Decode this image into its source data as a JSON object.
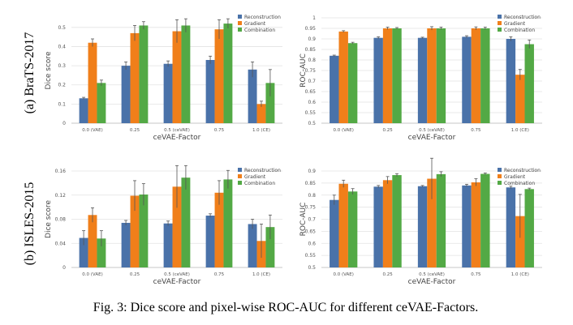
{
  "colors": {
    "Reconstruction": "#4a72a9",
    "Gradient": "#f07f1a",
    "Combination": "#53a945",
    "error": "#555555",
    "grid": "#e2e2e2"
  },
  "row_labels": [
    "(a) BraTS-2017",
    "(b) ISLES-2015"
  ],
  "caption": "Fig. 3: Dice score and pixel-wise ROC-AUC for different ceVAE-Factors.",
  "chart_data": [
    {
      "type": "bar",
      "ylabel": "Dice score",
      "xlabel": "ceVAE-Factor",
      "categories": [
        "0.0 (VAE)",
        "0.25",
        "0.5 (ceVAE)",
        "0.75",
        "1.0 (CE)"
      ],
      "ylim": [
        0,
        0.55
      ],
      "yticks": [
        "0",
        "0.1",
        "0.2",
        "0.3",
        "0.4",
        "0.5"
      ],
      "grid": true,
      "legend": "top-right",
      "series": [
        {
          "name": "Reconstruction",
          "values": [
            0.13,
            0.3,
            0.31,
            0.33,
            0.28
          ],
          "err": [
            0.005,
            0.02,
            0.015,
            0.02,
            0.04
          ]
        },
        {
          "name": "Gradient",
          "values": [
            0.42,
            0.47,
            0.48,
            0.49,
            0.1
          ],
          "err": [
            0.02,
            0.04,
            0.06,
            0.05,
            0.015
          ]
        },
        {
          "name": "Combination",
          "values": [
            0.21,
            0.51,
            0.51,
            0.52,
            0.21
          ],
          "err": [
            0.015,
            0.02,
            0.035,
            0.025,
            0.07
          ]
        }
      ]
    },
    {
      "type": "bar",
      "ylabel": "ROC-AUC",
      "xlabel": "ceVAE-Factor",
      "categories": [
        "0.0 (VAE)",
        "0.25",
        "0.5 (ceVAE)",
        "0.75",
        "1.0 (CE)"
      ],
      "ylim": [
        0.5,
        1.0
      ],
      "yticks": [
        "0.5",
        "0.55",
        "0.6",
        "0.65",
        "0.7",
        "0.75",
        "0.8",
        "0.85",
        "0.9",
        "0.95",
        "1"
      ],
      "grid": true,
      "legend": "top-right",
      "series": [
        {
          "name": "Reconstruction",
          "values": [
            0.82,
            0.905,
            0.905,
            0.91,
            0.9
          ],
          "err": [
            0.003,
            0.005,
            0.003,
            0.005,
            0.01
          ]
        },
        {
          "name": "Gradient",
          "values": [
            0.935,
            0.95,
            0.95,
            0.95,
            0.73
          ],
          "err": [
            0.004,
            0.006,
            0.008,
            0.007,
            0.025
          ]
        },
        {
          "name": "Combination",
          "values": [
            0.88,
            0.95,
            0.95,
            0.95,
            0.875
          ],
          "err": [
            0.004,
            0.004,
            0.006,
            0.006,
            0.02
          ]
        }
      ]
    },
    {
      "type": "bar",
      "ylabel": "Dice score",
      "xlabel": "ceVAE-Factor",
      "categories": [
        "0.0 (VAE)",
        "0.25",
        "0.5 (ceVAE)",
        "0.75",
        "1.0 (CE)"
      ],
      "ylim": [
        0,
        0.16
      ],
      "yticks": [
        "0",
        "0.04",
        "0.08",
        "0.12",
        "0.16"
      ],
      "grid": true,
      "legend": "top-right",
      "series": [
        {
          "name": "Reconstruction",
          "values": [
            0.049,
            0.074,
            0.073,
            0.086,
            0.072
          ],
          "err": [
            0.012,
            0.004,
            0.004,
            0.003,
            0.008
          ]
        },
        {
          "name": "Gradient",
          "values": [
            0.087,
            0.119,
            0.134,
            0.124,
            0.044
          ],
          "err": [
            0.012,
            0.025,
            0.035,
            0.02,
            0.028
          ]
        },
        {
          "name": "Combination",
          "values": [
            0.048,
            0.121,
            0.149,
            0.146,
            0.067
          ],
          "err": [
            0.013,
            0.018,
            0.02,
            0.015,
            0.02
          ]
        }
      ]
    },
    {
      "type": "bar",
      "ylabel": "ROC-AUC",
      "xlabel": "ceVAE-Factor",
      "categories": [
        "0.0 (VAE)",
        "0.25",
        "0.5 (ceVAE)",
        "0.75",
        "1.0 (CE)"
      ],
      "ylim": [
        0.5,
        0.9
      ],
      "yticks": [
        "0.5",
        "0.55",
        "0.6",
        "0.65",
        "0.7",
        "0.75",
        "0.8",
        "0.85",
        "0.9"
      ],
      "grid": true,
      "legend": "top-right",
      "series": [
        {
          "name": "Reconstruction",
          "values": [
            0.78,
            0.835,
            0.837,
            0.84,
            0.832
          ],
          "err": [
            0.02,
            0.005,
            0.003,
            0.005,
            0.005
          ]
        },
        {
          "name": "Gradient",
          "values": [
            0.847,
            0.862,
            0.868,
            0.853,
            0.713
          ],
          "err": [
            0.015,
            0.015,
            0.085,
            0.015,
            0.09
          ]
        },
        {
          "name": "Combination",
          "values": [
            0.815,
            0.883,
            0.887,
            0.888,
            0.825
          ],
          "err": [
            0.012,
            0.006,
            0.01,
            0.004,
            0.004
          ]
        }
      ]
    }
  ]
}
